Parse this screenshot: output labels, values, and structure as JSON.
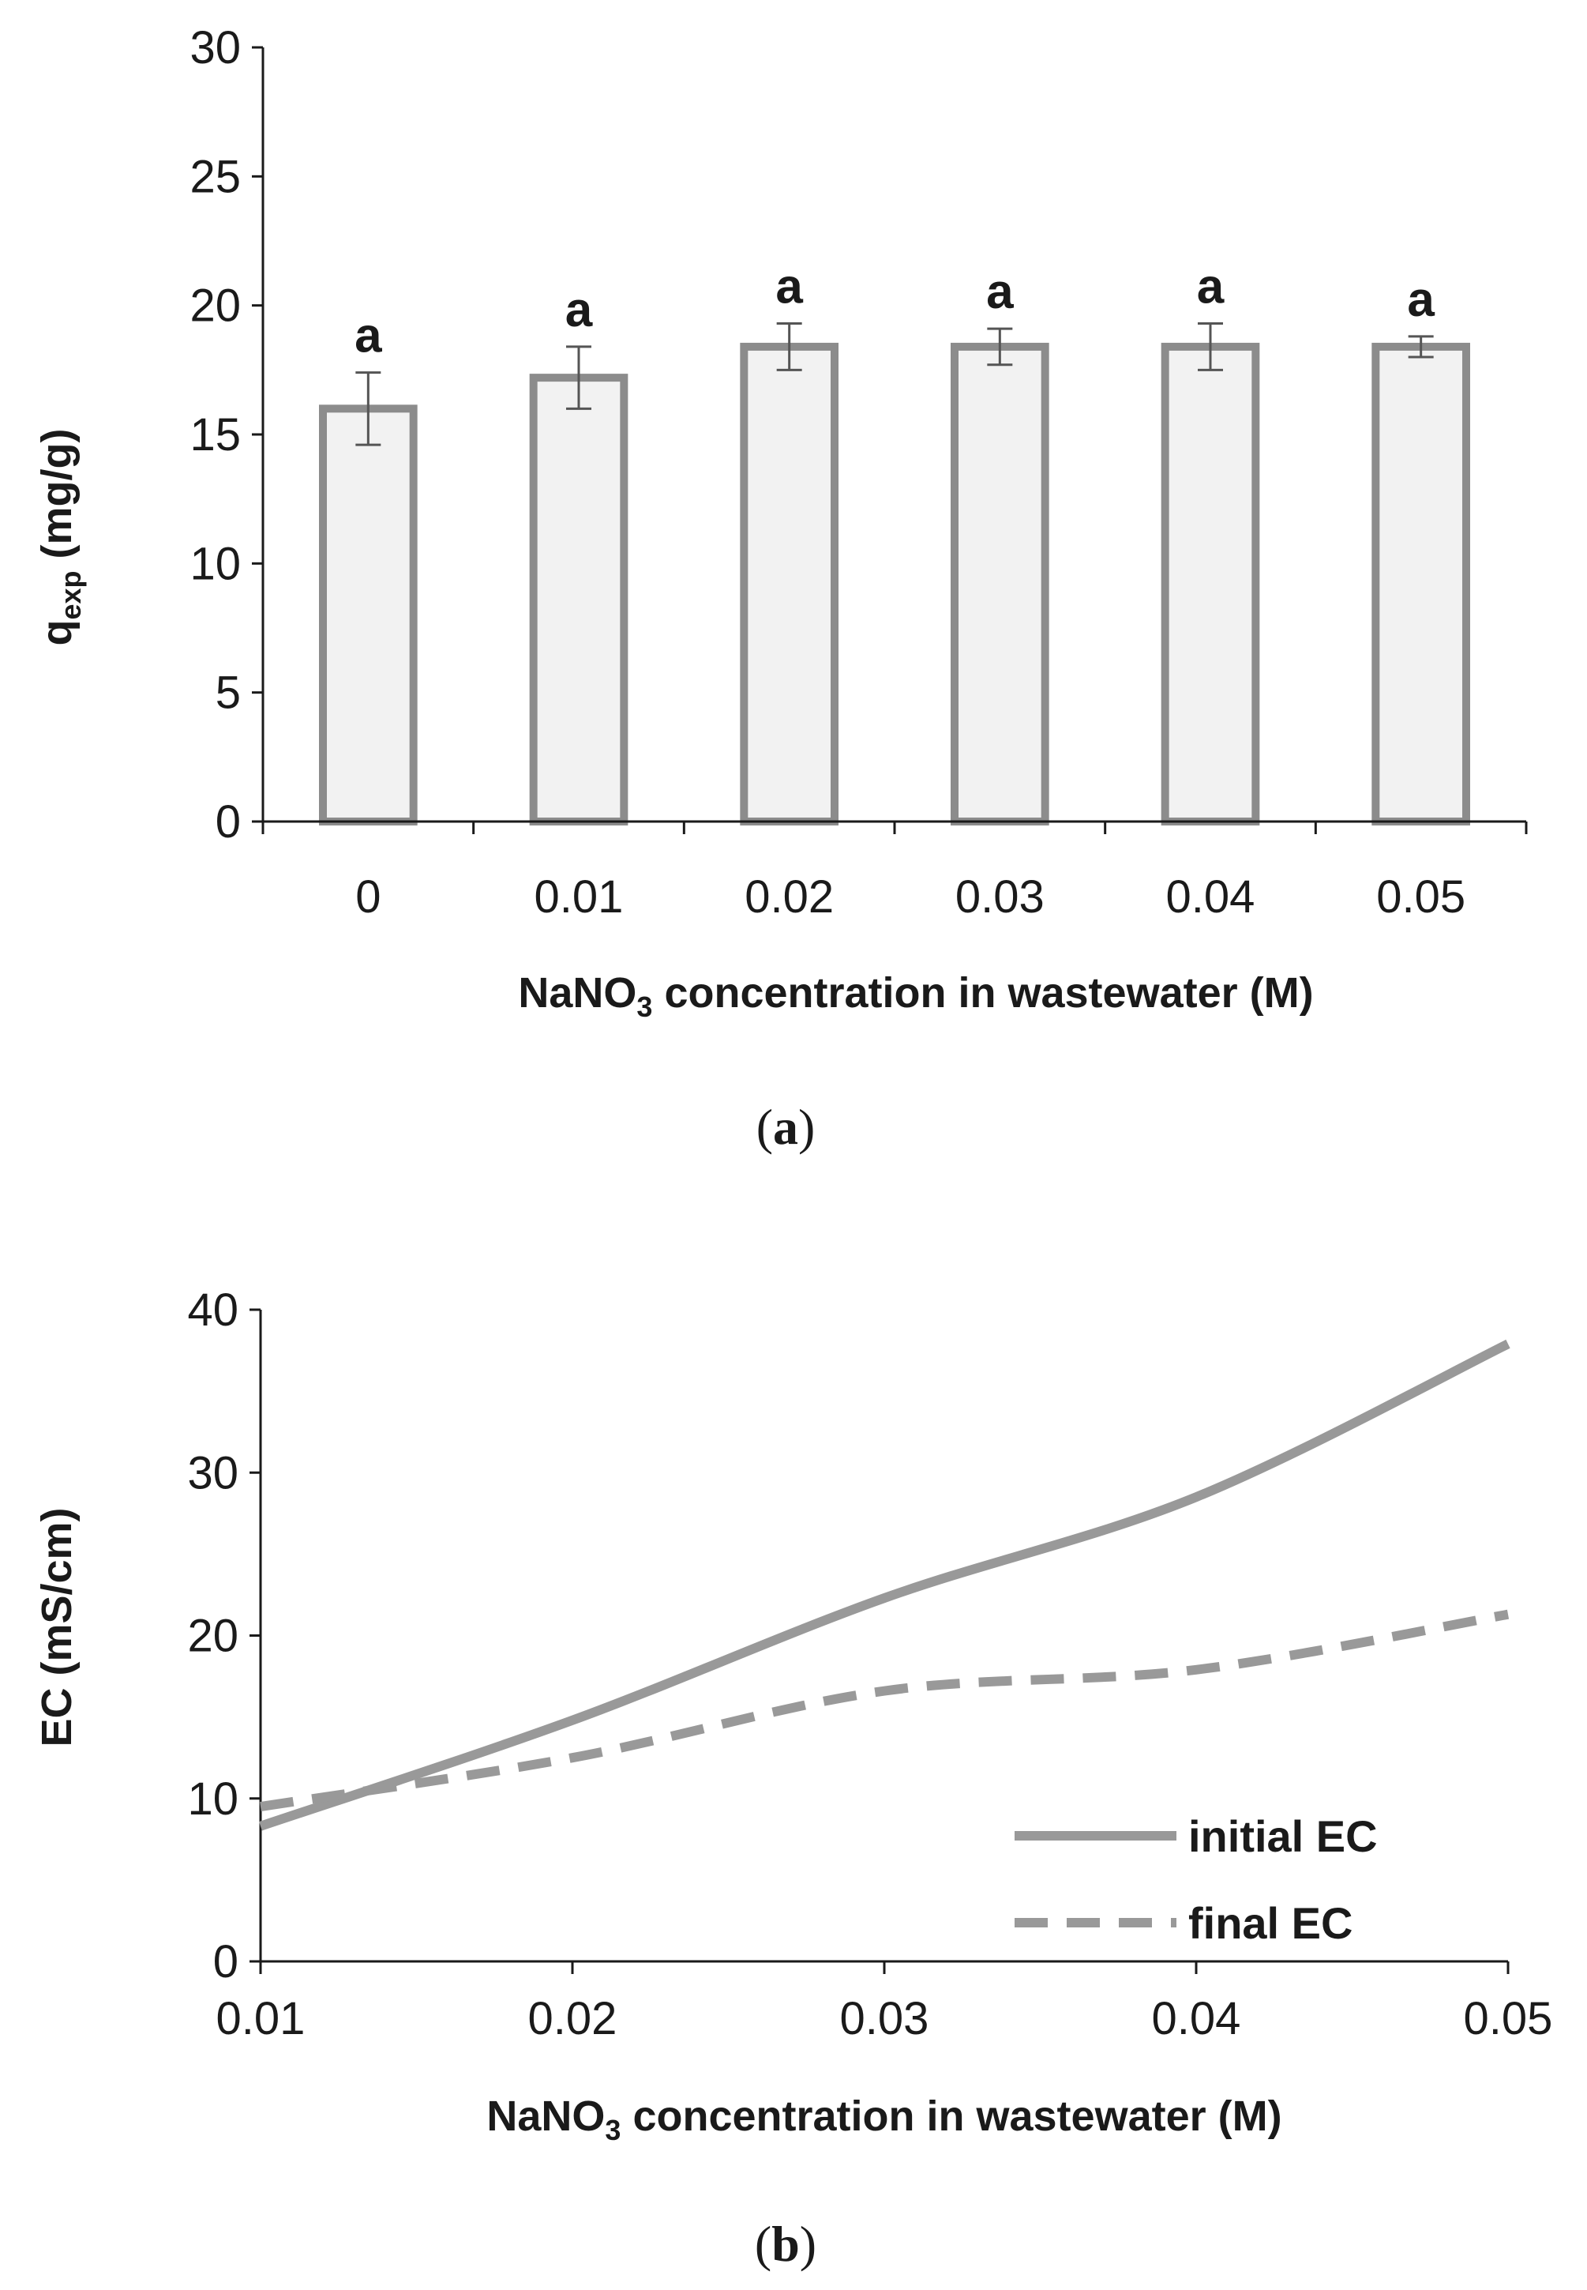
{
  "chart_data": [
    {
      "type": "bar",
      "panel_label": "a",
      "categories": [
        "0",
        "0.01",
        "0.02",
        "0.03",
        "0.04",
        "0.05"
      ],
      "values": [
        16.0,
        17.2,
        18.4,
        18.4,
        18.4,
        18.4
      ],
      "errors": [
        1.4,
        1.2,
        0.9,
        0.7,
        0.9,
        0.4
      ],
      "significance": [
        "a",
        "a",
        "a",
        "a",
        "a",
        "a"
      ],
      "ylim": [
        0,
        30
      ],
      "yticks": [
        0,
        5,
        10,
        15,
        20,
        25,
        30
      ],
      "ylabel": {
        "main": "q",
        "sub": "exp",
        "rest": " (mg/g)"
      },
      "xlabel": {
        "pre": "NaNO",
        "sub": "3",
        "post": " concentration in wastewater (M)"
      },
      "colors": {
        "bar_fill": "#f2f2f2",
        "bar_edge": "#8c8c8c",
        "axis": "#1a1a1a",
        "error": "#555555"
      }
    },
    {
      "type": "line",
      "panel_label": "b",
      "xlim": [
        0.01,
        0.05
      ],
      "xticks": [
        0.01,
        0.02,
        0.03,
        0.04,
        0.05
      ],
      "ylim": [
        0,
        40
      ],
      "yticks": [
        0,
        10,
        20,
        30,
        40
      ],
      "ylabel": "EC (mS/cm)",
      "xlabel": {
        "pre": "NaNO",
        "sub": "3",
        "post": " concentration in wastewater (M)"
      },
      "series": [
        {
          "name": "initial EC",
          "style": "solid",
          "x": [
            0.01,
            0.02,
            0.03,
            0.04,
            0.05
          ],
          "y": [
            8.3,
            14.8,
            22.3,
            28.5,
            37.9
          ]
        },
        {
          "name": "final EC",
          "style": "dashed",
          "x": [
            0.01,
            0.02,
            0.03,
            0.04,
            0.05
          ],
          "y": [
            9.5,
            12.5,
            16.6,
            17.9,
            21.3
          ]
        }
      ],
      "legend_position": "bottom-right",
      "colors": {
        "line": "#999999",
        "axis": "#1a1a1a"
      }
    }
  ]
}
